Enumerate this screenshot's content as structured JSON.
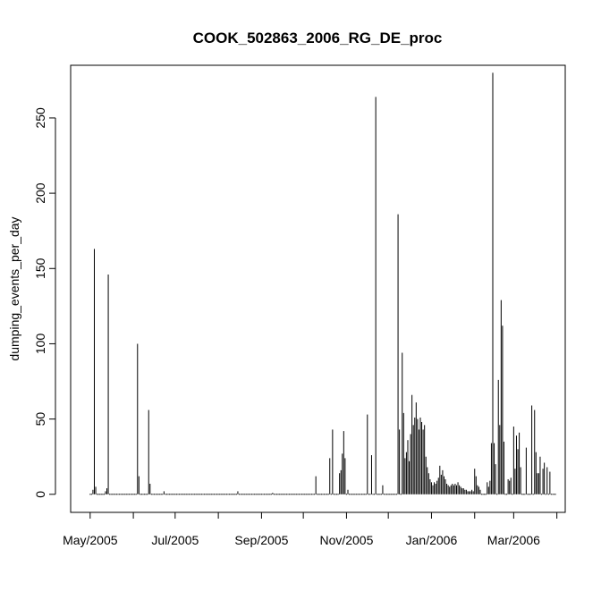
{
  "chart_data": {
    "type": "bar",
    "title": "COOK_502863_2006_RG_DE_proc",
    "xlabel": "",
    "ylabel": "dumping_events_per_day",
    "ylim": [
      -12,
      285
    ],
    "xlim": [
      "2005-04-17",
      "2006-04-07"
    ],
    "y_ticks": [
      0,
      50,
      100,
      150,
      200,
      250
    ],
    "x_ticks": [
      "2005-05-01",
      "2005-06-01",
      "2005-07-01",
      "2005-08-01",
      "2005-09-01",
      "2005-10-01",
      "2005-11-01",
      "2005-12-01",
      "2006-01-01",
      "2006-02-01",
      "2006-03-01",
      "2006-04-01"
    ],
    "x_tick_labels": [
      {
        "date": "2005-05-01",
        "label": "May/2005"
      },
      {
        "date": "2005-07-01",
        "label": "Jul/2005"
      },
      {
        "date": "2005-09-01",
        "label": "Sep/2005"
      },
      {
        "date": "2005-11-01",
        "label": "Nov/2005"
      },
      {
        "date": "2006-01-01",
        "label": "Jan/2006"
      },
      {
        "date": "2006-03-01",
        "label": "Mar/2006"
      }
    ],
    "series_range": [
      "2005-05-01",
      "2006-03-31"
    ],
    "points": [
      [
        "2005-05-03",
        3
      ],
      [
        "2005-05-04",
        163
      ],
      [
        "2005-05-05",
        5
      ],
      [
        "2005-05-12",
        2
      ],
      [
        "2005-05-13",
        4
      ],
      [
        "2005-05-14",
        146
      ],
      [
        "2005-06-04",
        100
      ],
      [
        "2005-06-05",
        12
      ],
      [
        "2005-06-12",
        56
      ],
      [
        "2005-06-13",
        7
      ],
      [
        "2005-06-23",
        2
      ],
      [
        "2005-08-15",
        2
      ],
      [
        "2005-09-09",
        1
      ],
      [
        "2005-10-10",
        12
      ],
      [
        "2005-10-20",
        24
      ],
      [
        "2005-10-22",
        43
      ],
      [
        "2005-10-27",
        14
      ],
      [
        "2005-10-28",
        16
      ],
      [
        "2005-10-29",
        27
      ],
      [
        "2005-10-30",
        42
      ],
      [
        "2005-10-31",
        24
      ],
      [
        "2005-11-02",
        3
      ],
      [
        "2005-11-16",
        53
      ],
      [
        "2005-11-19",
        26
      ],
      [
        "2005-11-22",
        264
      ],
      [
        "2005-11-27",
        6
      ],
      [
        "2005-12-08",
        186
      ],
      [
        "2005-12-09",
        43
      ],
      [
        "2005-12-11",
        94
      ],
      [
        "2005-12-12",
        54
      ],
      [
        "2005-12-13",
        24
      ],
      [
        "2005-12-14",
        28
      ],
      [
        "2005-12-15",
        36
      ],
      [
        "2005-12-16",
        22
      ],
      [
        "2005-12-17",
        40
      ],
      [
        "2005-12-18",
        66
      ],
      [
        "2005-12-19",
        46
      ],
      [
        "2005-12-20",
        51
      ],
      [
        "2005-12-21",
        61
      ],
      [
        "2005-12-22",
        50
      ],
      [
        "2005-12-23",
        43
      ],
      [
        "2005-12-24",
        51
      ],
      [
        "2005-12-25",
        48
      ],
      [
        "2005-12-26",
        43
      ],
      [
        "2005-12-27",
        46
      ],
      [
        "2005-12-28",
        25
      ],
      [
        "2005-12-29",
        18
      ],
      [
        "2005-12-30",
        14
      ],
      [
        "2005-12-31",
        10
      ],
      [
        "2006-01-01",
        8
      ],
      [
        "2006-01-02",
        6
      ],
      [
        "2006-01-03",
        8
      ],
      [
        "2006-01-04",
        7
      ],
      [
        "2006-01-05",
        9
      ],
      [
        "2006-01-06",
        11
      ],
      [
        "2006-01-07",
        19
      ],
      [
        "2006-01-08",
        13
      ],
      [
        "2006-01-09",
        16
      ],
      [
        "2006-01-10",
        12
      ],
      [
        "2006-01-11",
        10
      ],
      [
        "2006-01-12",
        7
      ],
      [
        "2006-01-13",
        6
      ],
      [
        "2006-01-14",
        5
      ],
      [
        "2006-01-15",
        6
      ],
      [
        "2006-01-16",
        7
      ],
      [
        "2006-01-17",
        6
      ],
      [
        "2006-01-18",
        7
      ],
      [
        "2006-01-19",
        6
      ],
      [
        "2006-01-20",
        8
      ],
      [
        "2006-01-21",
        6
      ],
      [
        "2006-01-22",
        5
      ],
      [
        "2006-01-23",
        4
      ],
      [
        "2006-01-24",
        4
      ],
      [
        "2006-01-25",
        3
      ],
      [
        "2006-01-26",
        3
      ],
      [
        "2006-01-27",
        2
      ],
      [
        "2006-01-28",
        2
      ],
      [
        "2006-01-29",
        2
      ],
      [
        "2006-01-30",
        3
      ],
      [
        "2006-01-31",
        2
      ],
      [
        "2006-02-01",
        17
      ],
      [
        "2006-02-02",
        12
      ],
      [
        "2006-02-03",
        6
      ],
      [
        "2006-02-04",
        5
      ],
      [
        "2006-02-05",
        3
      ],
      [
        "2006-02-10",
        8
      ],
      [
        "2006-02-11",
        5
      ],
      [
        "2006-02-12",
        9
      ],
      [
        "2006-02-13",
        34
      ],
      [
        "2006-02-14",
        280
      ],
      [
        "2006-02-15",
        34
      ],
      [
        "2006-02-16",
        20
      ],
      [
        "2006-02-18",
        76
      ],
      [
        "2006-02-19",
        46
      ],
      [
        "2006-02-20",
        129
      ],
      [
        "2006-02-21",
        112
      ],
      [
        "2006-02-22",
        35
      ],
      [
        "2006-02-25",
        10
      ],
      [
        "2006-02-26",
        9
      ],
      [
        "2006-02-27",
        11
      ],
      [
        "2006-03-01",
        45
      ],
      [
        "2006-03-02",
        17
      ],
      [
        "2006-03-03",
        39
      ],
      [
        "2006-03-04",
        30
      ],
      [
        "2006-03-05",
        41
      ],
      [
        "2006-03-06",
        18
      ],
      [
        "2006-03-10",
        31
      ],
      [
        "2006-03-14",
        59
      ],
      [
        "2006-03-16",
        56
      ],
      [
        "2006-03-17",
        28
      ],
      [
        "2006-03-18",
        14
      ],
      [
        "2006-03-19",
        14
      ],
      [
        "2006-03-20",
        25
      ],
      [
        "2006-03-22",
        17
      ],
      [
        "2006-03-23",
        21
      ],
      [
        "2006-03-25",
        18
      ],
      [
        "2006-03-27",
        15
      ]
    ]
  }
}
